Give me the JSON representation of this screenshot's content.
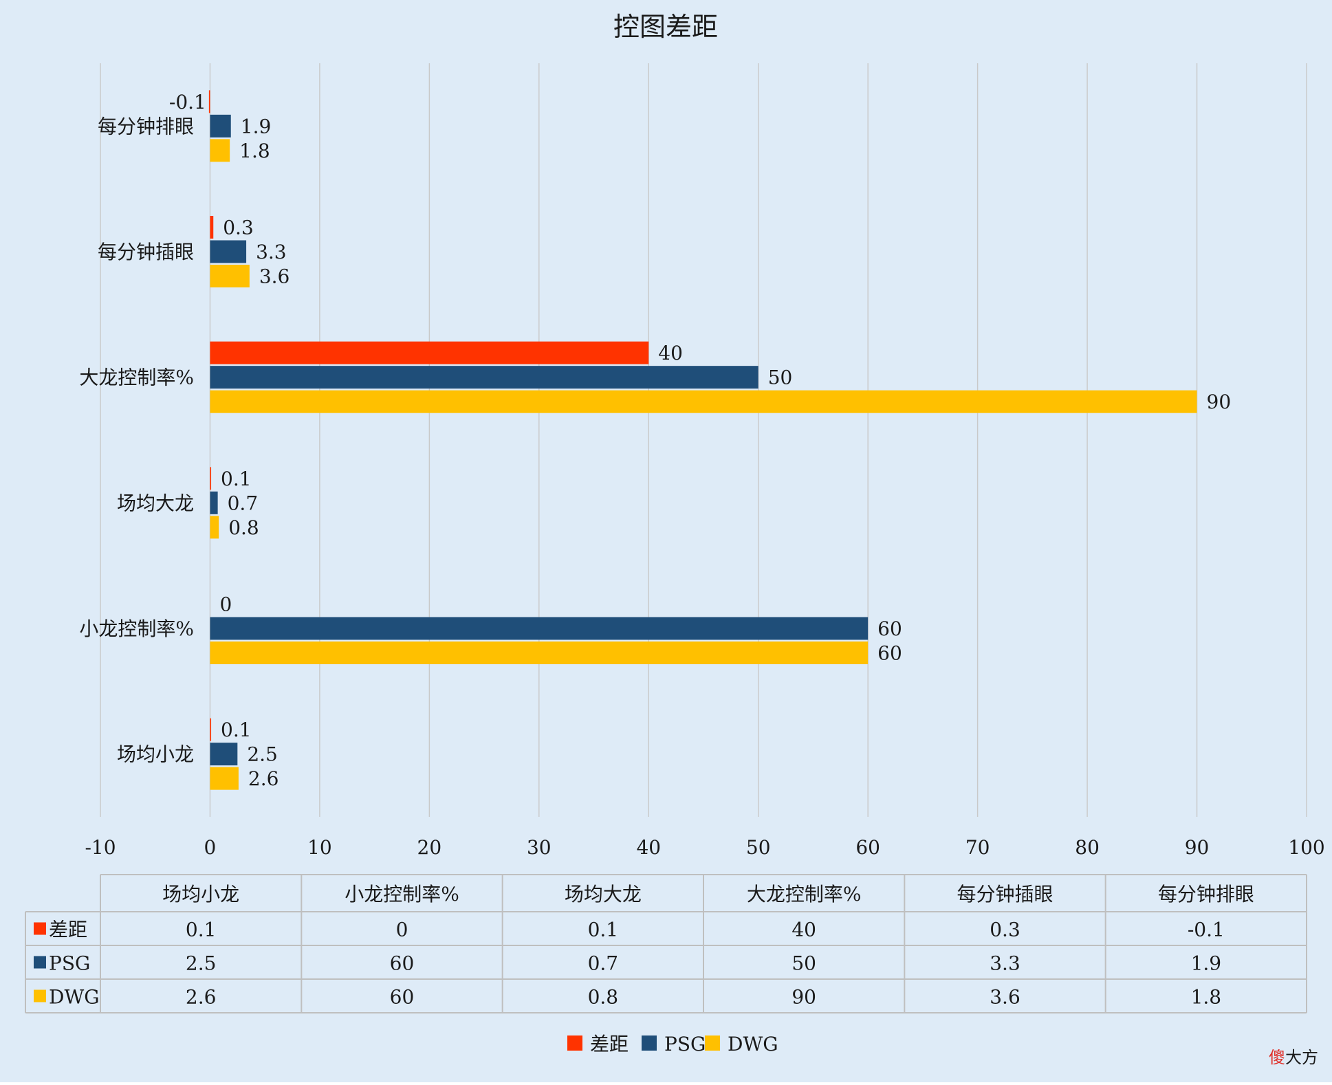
{
  "chart_data": {
    "type": "bar",
    "orientation": "horizontal",
    "title": "控图差距",
    "categories": [
      "场均小龙",
      "小龙控制率%",
      "场均大龙",
      "大龙控制率%",
      "每分钟插眼",
      "每分钟排眼"
    ],
    "value_labels": {
      "差距": [
        "0.1",
        "0",
        "0.1",
        "40",
        "0.3",
        "-0.1"
      ],
      "PSG": [
        "2.5",
        "60",
        "0.7",
        "50",
        "3.3",
        "1.9"
      ],
      "DWG": [
        "2.6",
        "60",
        "0.8",
        "90",
        "3.6",
        "1.8"
      ]
    },
    "series": [
      {
        "name": "差距",
        "color": "#ff3300",
        "values": [
          0.1,
          0,
          0.1,
          40,
          0.3,
          -0.1
        ]
      },
      {
        "name": "PSG",
        "color": "#1f4e79",
        "values": [
          2.5,
          60,
          0.7,
          50,
          3.3,
          1.9
        ]
      },
      {
        "name": "DWG",
        "color": "#ffc000",
        "values": [
          2.6,
          60,
          0.8,
          90,
          3.6,
          1.8
        ]
      }
    ],
    "xlim": [
      -10,
      100
    ],
    "xticks": [
      -10,
      0,
      10,
      20,
      30,
      40,
      50,
      60,
      70,
      80,
      90,
      100
    ],
    "grid": true,
    "legend": "bottom",
    "data_table": true
  },
  "watermark": {
    "part1": "傻",
    "part2": "大方"
  },
  "colors": {
    "background": "#deebf7",
    "gridline": "#c9c9c9",
    "table_border": "#bfbfbf",
    "text": "#1a1a1a"
  }
}
